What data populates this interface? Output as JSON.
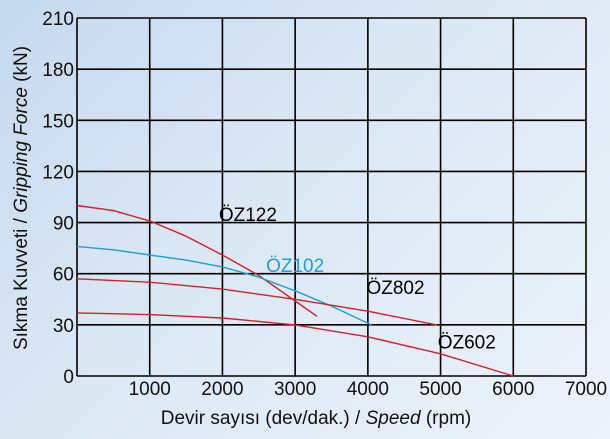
{
  "chart_data": {
    "type": "line",
    "title": "",
    "xlabel_plain": "Devir sayısı (dev/dak.) / ",
    "xlabel_italic": "Speed",
    "xlabel_unit": " (rpm)",
    "ylabel_plain": "Sıkma Kuvveti / ",
    "ylabel_italic": "Gripping Force",
    "ylabel_unit": " (kN)",
    "xlim": [
      0,
      7000
    ],
    "ylim": [
      0,
      210
    ],
    "x_ticks": [
      0,
      1000,
      2000,
      3000,
      4000,
      5000,
      6000,
      7000
    ],
    "x_tick_labels": [
      "",
      "1000",
      "2000",
      "3000",
      "4000",
      "5000",
      "6000",
      "7000"
    ],
    "y_ticks": [
      0,
      30,
      60,
      90,
      120,
      150,
      180,
      210
    ],
    "y_tick_labels": [
      "0",
      "30",
      "60",
      "90",
      "120",
      "150",
      "180",
      "210"
    ],
    "grid": true,
    "colors": {
      "red": "#d42027",
      "blue": "#1ba1d8",
      "grid": "#000000"
    },
    "series": [
      {
        "name": "ÖZ122",
        "color": "#d42027",
        "x": [
          0,
          500,
          1000,
          1500,
          2000,
          2500,
          3000,
          3300
        ],
        "y": [
          100,
          97,
          91,
          82,
          71,
          59,
          44,
          35
        ]
      },
      {
        "name": "ÖZ102",
        "color": "#1ba1d8",
        "x": [
          0,
          500,
          1000,
          1500,
          2000,
          2500,
          3000,
          3500,
          4050
        ],
        "y": [
          76,
          74,
          71,
          68,
          64,
          58,
          50,
          41,
          30
        ]
      },
      {
        "name": "ÖZ802",
        "color": "#d42027",
        "x": [
          0,
          1000,
          2000,
          3000,
          4000,
          4950
        ],
        "y": [
          57,
          55,
          51,
          45,
          38,
          30
        ]
      },
      {
        "name": "ÖZ602",
        "color": "#d42027",
        "x": [
          0,
          1000,
          2000,
          3000,
          4000,
          5000,
          6000
        ],
        "y": [
          37,
          36,
          34,
          30,
          23,
          13,
          0
        ]
      }
    ],
    "series_labels": [
      {
        "text": "ÖZ122",
        "color": "#000000",
        "x": 2350,
        "y": 94
      },
      {
        "text": "ÖZ102",
        "color": "#1ba1d8",
        "x": 3000,
        "y": 64
      },
      {
        "text": "ÖZ802",
        "color": "#000000",
        "x": 4380,
        "y": 51
      },
      {
        "text": "ÖZ602",
        "color": "#000000",
        "x": 5360,
        "y": 19
      }
    ]
  }
}
